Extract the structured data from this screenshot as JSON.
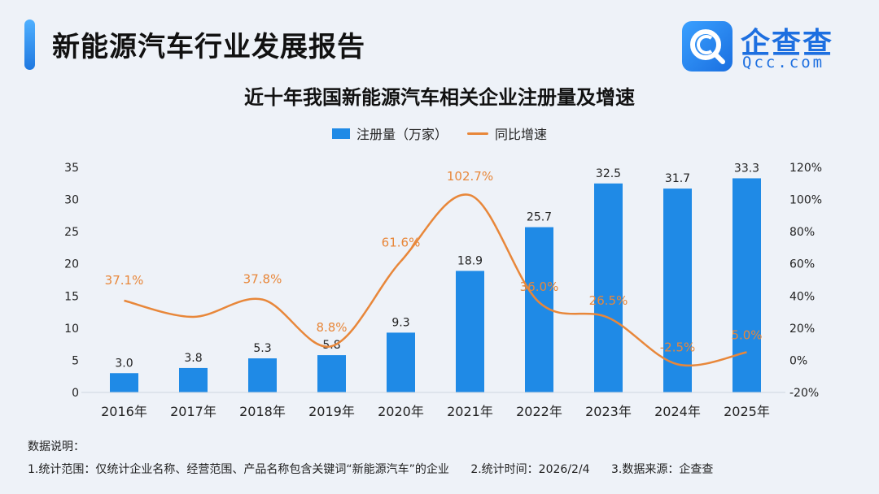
{
  "header": {
    "title": "新能源汽车行业发展报告",
    "logo_name": "企查查",
    "logo_domain": "Qcc.com"
  },
  "colors": {
    "bar": "#1f8ae6",
    "line": "#e8873a",
    "accent": "#1d6fe0"
  },
  "chart_data": {
    "type": "bar",
    "title": "近十年我国新能源汽车相关企业注册量及增速",
    "categories": [
      "2016年",
      "2017年",
      "2018年",
      "2019年",
      "2020年",
      "2021年",
      "2022年",
      "2023年",
      "2024年",
      "2025年"
    ],
    "series": [
      {
        "name": "注册量（万家）",
        "type": "bar",
        "axis": "left",
        "values": [
          3.0,
          3.8,
          5.3,
          5.8,
          9.3,
          18.9,
          25.7,
          32.5,
          31.7,
          33.3
        ],
        "labels": [
          "3.0",
          "3.8",
          "5.3",
          "5.8",
          "9.3",
          "18.9",
          "25.7",
          "32.5",
          "31.7",
          "33.3"
        ]
      },
      {
        "name": "同比增速",
        "type": "line",
        "axis": "right",
        "values": [
          37.1,
          27.0,
          37.8,
          8.8,
          61.6,
          102.7,
          36.0,
          26.5,
          -2.5,
          5.0
        ],
        "labels": [
          "37.1%",
          "",
          "37.8%",
          "8.8%",
          "61.6%",
          "102.7%",
          "36.0%",
          "26.5%",
          "-2.5%",
          "5.0%"
        ]
      }
    ],
    "y_left": {
      "min": 0,
      "max": 35,
      "ticks": [
        0,
        5,
        10,
        15,
        20,
        25,
        30,
        35
      ],
      "tick_labels": [
        "0",
        "5",
        "10",
        "15",
        "20",
        "25",
        "30",
        "35"
      ]
    },
    "y_right": {
      "min": -20,
      "max": 120,
      "ticks": [
        -20,
        0,
        20,
        40,
        60,
        80,
        100,
        120
      ],
      "tick_labels": [
        "-20%",
        "0%",
        "20%",
        "40%",
        "60%",
        "80%",
        "100%",
        "120%"
      ]
    },
    "legend_position": "top-center",
    "grid": false
  },
  "notes": {
    "heading": "数据说明：",
    "items": [
      "1.统计范围：仅统计企业名称、经营范围、产品名称包含关键词“新能源汽车”的企业",
      "2.统计时间：2026/2/4",
      "3.数据来源：企查查"
    ]
  }
}
